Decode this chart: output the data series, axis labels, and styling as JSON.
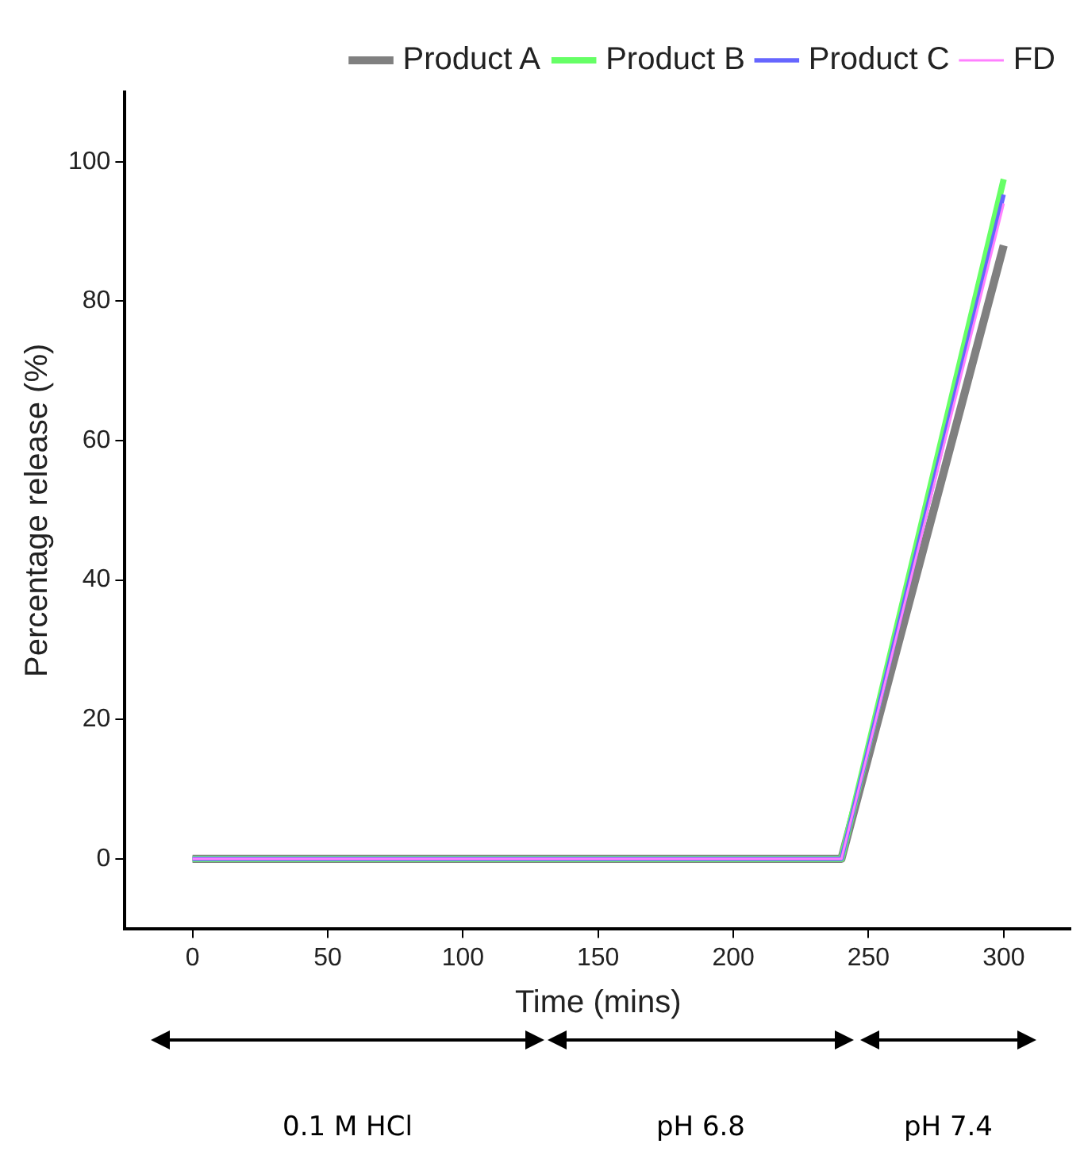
{
  "chart_data": {
    "type": "line",
    "xlabel": "Time (mins)",
    "ylabel": "Percentage release (%)",
    "x": [
      0,
      120,
      240,
      300
    ],
    "series": [
      {
        "name": "Product A",
        "color": "#808080",
        "values": [
          0,
          0,
          0,
          88
        ]
      },
      {
        "name": "Product B",
        "color": "#66ff66",
        "values": [
          0,
          0,
          0,
          97.5
        ]
      },
      {
        "name": "Product C",
        "color": "#6666ff",
        "values": [
          0,
          0,
          0,
          95.3
        ]
      },
      {
        "name": "FD",
        "color": "#ff80ff",
        "values": [
          0,
          0,
          0,
          94
        ]
      }
    ],
    "xlim": [
      -25,
      325
    ],
    "xticks": [
      0,
      50,
      100,
      150,
      200,
      250,
      300
    ],
    "ylim": [
      -10,
      110
    ],
    "yticks": [
      0,
      20,
      40,
      60,
      80,
      100
    ],
    "grid": false,
    "legend": "top right",
    "marker": "none",
    "line_style": "solid",
    "annotations": [
      "0.1 M HCl",
      "pH 6.8",
      "pH 7.4"
    ]
  }
}
